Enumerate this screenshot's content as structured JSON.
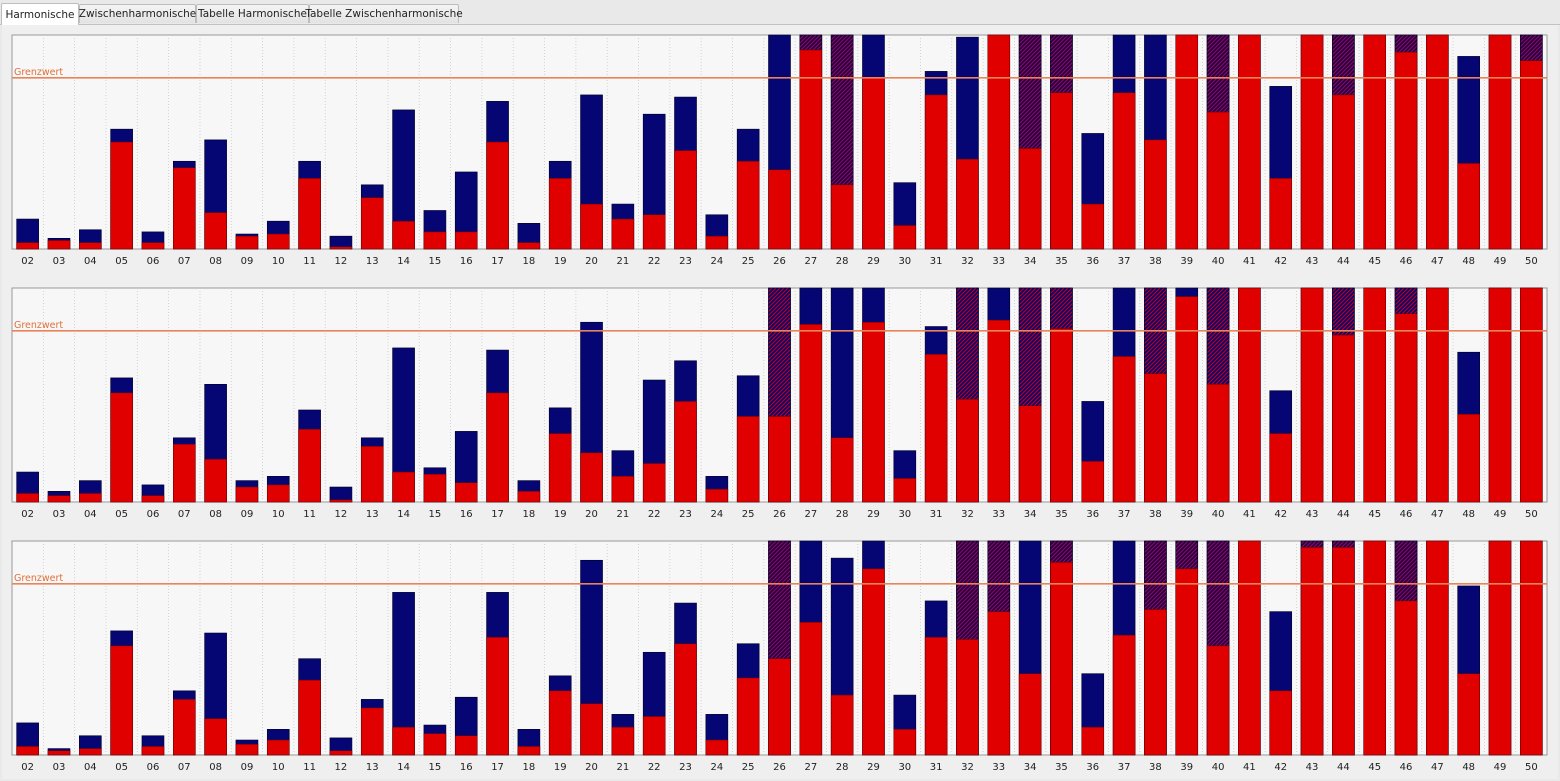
{
  "tabs": [
    {
      "label": "Harmonische",
      "active": true
    },
    {
      "label": "Zwischenharmonische",
      "active": false
    },
    {
      "label": "Tabelle Harmonische",
      "active": false
    },
    {
      "label": "Tabelle Zwischenharmonische",
      "active": false
    }
  ],
  "colors": {
    "red": "#e00000",
    "blue": "#050573",
    "hatch": "#6a1a4a",
    "limit_line": "#e8845a",
    "plot_bg": "#f7f7f7"
  },
  "chart_data": [
    {
      "type": "bar",
      "limit_label": "Grenzwert",
      "limit": 80,
      "ylim": [
        0,
        100
      ],
      "categories": [
        "02",
        "03",
        "04",
        "05",
        "06",
        "07",
        "08",
        "09",
        "10",
        "11",
        "12",
        "13",
        "14",
        "15",
        "16",
        "17",
        "18",
        "19",
        "20",
        "21",
        "22",
        "23",
        "24",
        "25",
        "26",
        "27",
        "28",
        "29",
        "30",
        "31",
        "32",
        "33",
        "34",
        "35",
        "36",
        "37",
        "38",
        "39",
        "40",
        "41",
        "42",
        "43",
        "44",
        "45",
        "46",
        "47",
        "48",
        "49",
        "50"
      ],
      "series": [
        {
          "role": "red",
          "values": [
            3,
            4,
            3,
            50,
            3,
            38,
            17,
            6,
            7,
            33,
            1,
            24,
            13,
            8,
            8,
            50,
            3,
            33,
            21,
            14,
            16,
            46,
            6,
            41,
            37,
            93,
            30,
            80,
            11,
            72,
            42,
            100,
            47,
            73,
            21,
            73,
            51,
            100,
            64,
            100,
            33,
            100,
            72,
            100,
            92,
            100,
            40,
            100,
            88
          ]
        },
        {
          "role": "blue",
          "values": [
            14,
            5,
            9,
            56,
            8,
            41,
            51,
            7,
            13,
            41,
            6,
            30,
            65,
            18,
            36,
            69,
            12,
            41,
            72,
            21,
            63,
            71,
            16,
            56,
            100,
            100,
            100,
            100,
            31,
            83,
            99,
            100,
            100,
            100,
            54,
            100,
            100,
            100,
            100,
            100,
            76,
            100,
            100,
            100,
            100,
            100,
            90,
            100,
            100
          ]
        },
        {
          "role": "hatch",
          "values": [
            0,
            0,
            0,
            0,
            0,
            0,
            0,
            0,
            0,
            0,
            0,
            0,
            0,
            0,
            0,
            0,
            0,
            0,
            0,
            0,
            0,
            0,
            0,
            0,
            0,
            100,
            100,
            0,
            0,
            0,
            0,
            0,
            100,
            100,
            0,
            0,
            0,
            0,
            100,
            0,
            0,
            0,
            100,
            0,
            100,
            0,
            0,
            0,
            100
          ]
        }
      ]
    },
    {
      "type": "bar",
      "limit_label": "Grenzwert",
      "limit": 80,
      "ylim": [
        0,
        100
      ],
      "categories": [
        "02",
        "03",
        "04",
        "05",
        "06",
        "07",
        "08",
        "09",
        "10",
        "11",
        "12",
        "13",
        "14",
        "15",
        "16",
        "17",
        "18",
        "19",
        "20",
        "21",
        "22",
        "23",
        "24",
        "25",
        "26",
        "27",
        "28",
        "29",
        "30",
        "31",
        "32",
        "33",
        "34",
        "35",
        "36",
        "37",
        "38",
        "39",
        "40",
        "41",
        "42",
        "43",
        "44",
        "45",
        "46",
        "47",
        "48",
        "49",
        "50"
      ],
      "series": [
        {
          "role": "red",
          "values": [
            4,
            3,
            4,
            51,
            3,
            27,
            20,
            7,
            8,
            34,
            1,
            26,
            14,
            13,
            9,
            51,
            5,
            32,
            23,
            12,
            18,
            47,
            6,
            40,
            40,
            83,
            30,
            84,
            11,
            69,
            48,
            85,
            45,
            81,
            19,
            68,
            60,
            96,
            55,
            100,
            32,
            100,
            78,
            100,
            88,
            100,
            41,
            100,
            100
          ]
        },
        {
          "role": "blue",
          "values": [
            14,
            5,
            10,
            58,
            8,
            30,
            55,
            10,
            12,
            43,
            7,
            30,
            72,
            16,
            33,
            71,
            10,
            44,
            84,
            24,
            57,
            66,
            12,
            59,
            100,
            100,
            100,
            100,
            24,
            82,
            100,
            100,
            100,
            100,
            47,
            100,
            100,
            100,
            100,
            100,
            52,
            100,
            100,
            100,
            100,
            100,
            70,
            100,
            100
          ]
        },
        {
          "role": "hatch",
          "values": [
            0,
            0,
            0,
            0,
            0,
            0,
            0,
            0,
            0,
            0,
            0,
            0,
            0,
            0,
            0,
            0,
            0,
            0,
            0,
            0,
            0,
            0,
            0,
            0,
            100,
            0,
            0,
            0,
            0,
            0,
            100,
            0,
            100,
            100,
            0,
            0,
            100,
            0,
            100,
            0,
            0,
            0,
            100,
            0,
            100,
            0,
            0,
            0,
            0
          ]
        }
      ]
    },
    {
      "type": "bar",
      "limit_label": "Grenzwert",
      "limit": 80,
      "ylim": [
        0,
        100
      ],
      "categories": [
        "02",
        "03",
        "04",
        "05",
        "06",
        "07",
        "08",
        "09",
        "10",
        "11",
        "12",
        "13",
        "14",
        "15",
        "16",
        "17",
        "18",
        "19",
        "20",
        "21",
        "22",
        "23",
        "24",
        "25",
        "26",
        "27",
        "28",
        "29",
        "30",
        "31",
        "32",
        "33",
        "34",
        "35",
        "36",
        "37",
        "38",
        "39",
        "40",
        "41",
        "42",
        "43",
        "44",
        "45",
        "46",
        "47",
        "48",
        "49",
        "50"
      ],
      "series": [
        {
          "role": "red",
          "values": [
            4,
            2,
            3,
            51,
            4,
            26,
            17,
            5,
            7,
            35,
            2,
            22,
            13,
            10,
            9,
            55,
            4,
            30,
            24,
            13,
            18,
            52,
            7,
            36,
            45,
            62,
            28,
            87,
            12,
            55,
            54,
            67,
            38,
            90,
            13,
            56,
            68,
            87,
            51,
            100,
            30,
            97,
            97,
            100,
            72,
            100,
            38,
            100,
            100
          ]
        },
        {
          "role": "blue",
          "values": [
            15,
            3,
            9,
            58,
            9,
            30,
            57,
            7,
            12,
            45,
            8,
            26,
            76,
            14,
            27,
            76,
            12,
            37,
            91,
            19,
            48,
            71,
            19,
            52,
            100,
            100,
            92,
            100,
            28,
            72,
            100,
            100,
            100,
            100,
            38,
            100,
            100,
            100,
            100,
            100,
            67,
            100,
            100,
            100,
            100,
            100,
            79,
            100,
            100
          ]
        },
        {
          "role": "hatch",
          "values": [
            0,
            0,
            0,
            0,
            0,
            0,
            0,
            0,
            0,
            0,
            0,
            0,
            0,
            0,
            0,
            0,
            0,
            0,
            0,
            0,
            0,
            0,
            0,
            0,
            100,
            0,
            0,
            0,
            0,
            0,
            100,
            100,
            0,
            100,
            0,
            0,
            100,
            100,
            100,
            0,
            0,
            100,
            100,
            0,
            100,
            0,
            0,
            0,
            0
          ]
        }
      ]
    }
  ]
}
